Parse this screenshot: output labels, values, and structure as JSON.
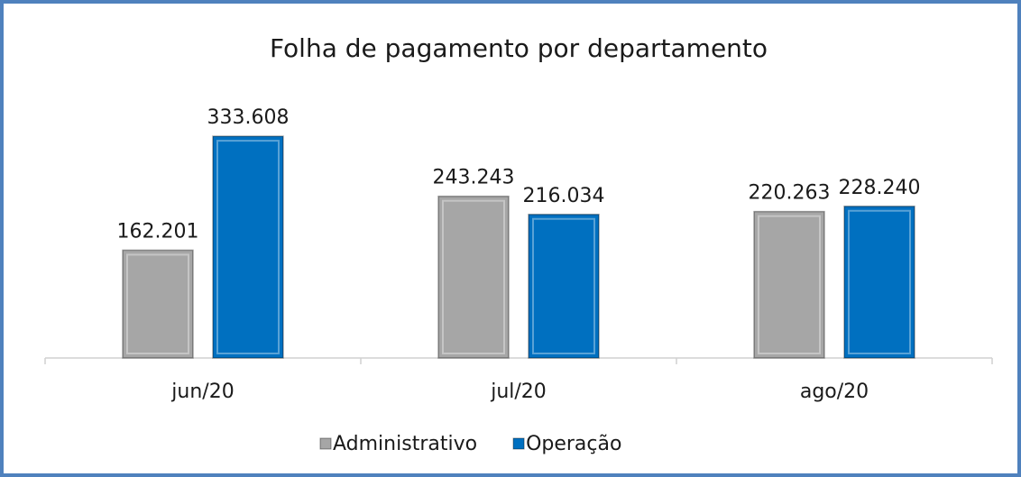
{
  "chart_data": {
    "type": "bar",
    "title": "Folha de pagamento por departamento",
    "categories": [
      "jun/20",
      "jul/20",
      "ago/20"
    ],
    "series": [
      {
        "name": "Administrativo",
        "color": "#a6a6a6",
        "values": [
          162201,
          243243,
          220263
        ],
        "value_labels": [
          "162.201",
          "243.243",
          "220.263"
        ]
      },
      {
        "name": "Operação",
        "color": "#0070c0",
        "values": [
          333608,
          216034,
          228240
        ],
        "value_labels": [
          "333.608",
          "216.034",
          "228.240"
        ]
      }
    ],
    "ylim": [
      0,
      350000
    ],
    "grid": false,
    "legend": "bottom"
  }
}
